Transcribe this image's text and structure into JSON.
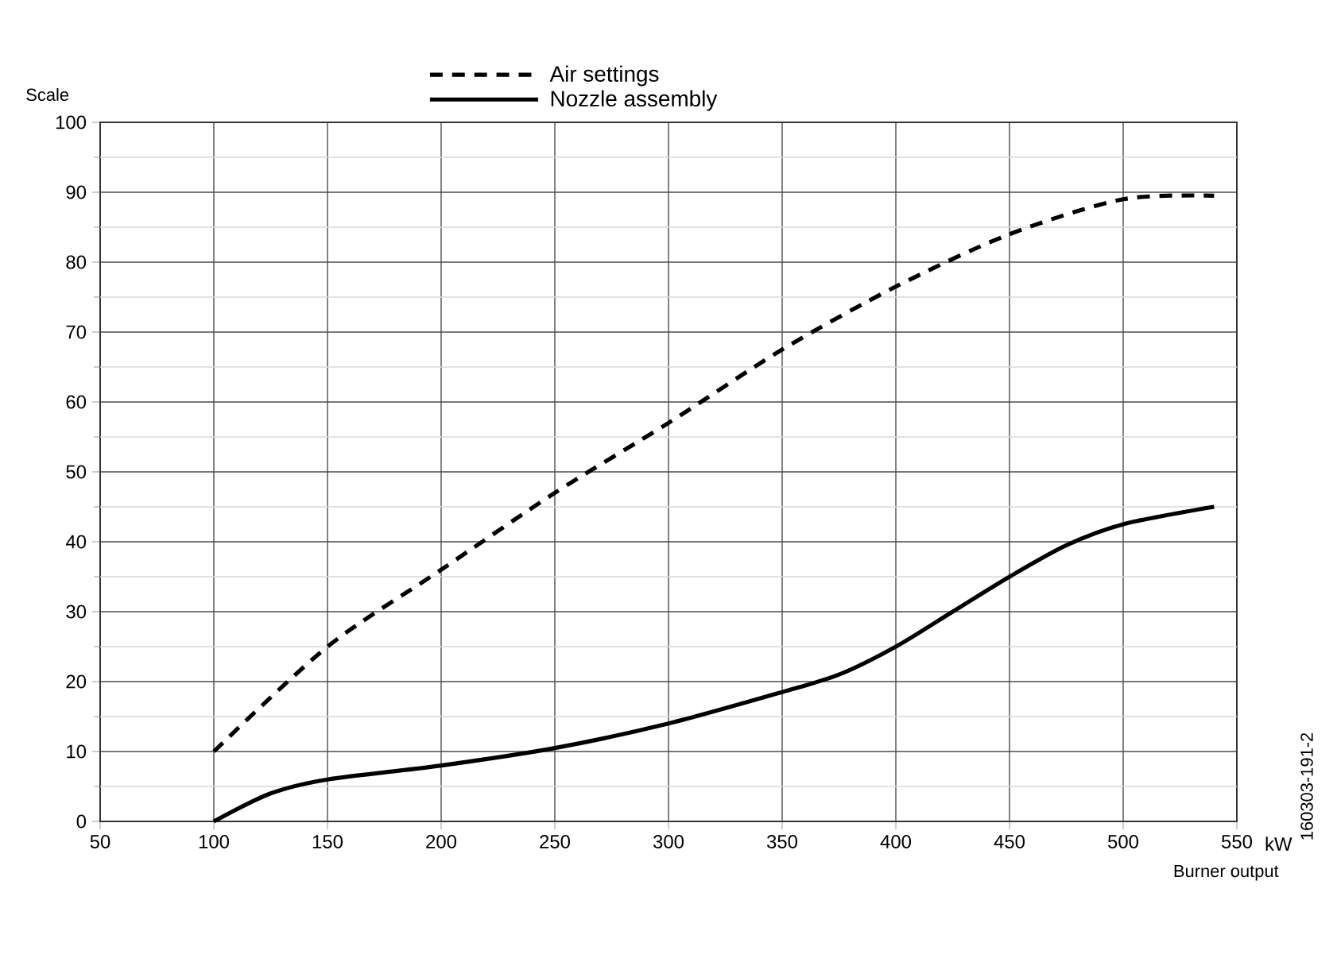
{
  "chart_data": {
    "type": "line",
    "xlabel": "Burner output",
    "ylabel": "Scale",
    "annotations": [
      "kW",
      "160303-191-2"
    ],
    "series": [
      {
        "name": "Air settings",
        "color": "#000000",
        "line_style": "dashed",
        "x": [
          100,
          150,
          200,
          250,
          300,
          350,
          400,
          450,
          500,
          540
        ],
        "values": [
          10,
          25,
          36,
          47,
          57,
          67.5,
          76.5,
          84,
          89,
          89.5
        ]
      },
      {
        "name": "Nozzle assembly",
        "color": "#000000",
        "line_style": "solid",
        "x": [
          100,
          125,
          150,
          200,
          250,
          300,
          350,
          375,
          400,
          425,
          450,
          475,
          500,
          540
        ],
        "values": [
          0,
          4,
          6,
          8,
          10.5,
          14,
          18.5,
          21,
          25,
          30,
          35,
          39.5,
          42.5,
          45
        ]
      }
    ],
    "xlim": [
      50,
      550
    ],
    "xticks": [
      50,
      100,
      150,
      200,
      250,
      300,
      350,
      400,
      450,
      500,
      550
    ],
    "ylim": [
      0,
      100
    ],
    "yticks": [
      0,
      {
        "value": 5,
        "label": null
      },
      10,
      {
        "value": 15,
        "label": null
      },
      20,
      {
        "value": 25,
        "label": null
      },
      30,
      {
        "value": 35,
        "label": null
      },
      40,
      {
        "value": 45,
        "label": null
      },
      50,
      {
        "value": 55,
        "label": null
      },
      60,
      {
        "value": 65,
        "label": null
      },
      70,
      {
        "value": 75,
        "label": null
      },
      80,
      {
        "value": 85,
        "label": null
      },
      90,
      {
        "value": 95,
        "label": null
      },
      100
    ],
    "grid": true,
    "legend": "top",
    "marker": "none"
  }
}
